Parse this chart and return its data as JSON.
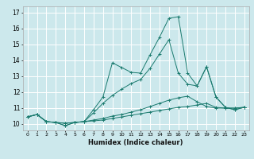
{
  "xlabel": "Humidex (Indice chaleur)",
  "bg_color": "#cce8ec",
  "grid_color": "#ffffff",
  "line_color": "#1a7a6e",
  "xlim": [
    -0.5,
    23.5
  ],
  "ylim": [
    9.6,
    17.4
  ],
  "yticks": [
    10,
    11,
    12,
    13,
    14,
    15,
    16,
    17
  ],
  "xticks": [
    0,
    1,
    2,
    3,
    4,
    5,
    6,
    7,
    8,
    9,
    10,
    11,
    12,
    13,
    14,
    15,
    16,
    17,
    18,
    19,
    20,
    21,
    22,
    23
  ],
  "series": [
    {
      "x": [
        0,
        1,
        2,
        3,
        4,
        5,
        6,
        7,
        8,
        9,
        10,
        11,
        12,
        13,
        14,
        15,
        16,
        17,
        18,
        19,
        20,
        21,
        22,
        23
      ],
      "y": [
        10.45,
        10.6,
        10.15,
        10.1,
        10.05,
        10.1,
        10.15,
        10.2,
        10.25,
        10.35,
        10.45,
        10.55,
        10.65,
        10.75,
        10.85,
        10.95,
        11.05,
        11.1,
        11.2,
        11.3,
        11.05,
        11.0,
        11.0,
        11.05
      ]
    },
    {
      "x": [
        0,
        1,
        2,
        3,
        4,
        5,
        6,
        7,
        8,
        9,
        10,
        11,
        12,
        13,
        14,
        15,
        16,
        17,
        18,
        19,
        20,
        21,
        22,
        23
      ],
      "y": [
        10.45,
        10.6,
        10.15,
        10.1,
        10.05,
        10.1,
        10.15,
        10.25,
        10.35,
        10.5,
        10.6,
        10.75,
        10.9,
        11.1,
        11.3,
        11.5,
        11.65,
        11.75,
        11.4,
        11.1,
        11.0,
        11.0,
        11.0,
        11.05
      ]
    },
    {
      "x": [
        0,
        1,
        2,
        3,
        4,
        5,
        6,
        7,
        8,
        9,
        10,
        11,
        12,
        13,
        14,
        15,
        16,
        17,
        18,
        19,
        20,
        21,
        22,
        23
      ],
      "y": [
        10.45,
        10.6,
        10.15,
        10.1,
        9.9,
        10.1,
        10.15,
        10.7,
        11.3,
        11.8,
        12.2,
        12.55,
        12.8,
        13.5,
        14.4,
        15.3,
        13.2,
        12.5,
        12.4,
        13.6,
        11.7,
        11.05,
        10.9,
        11.05
      ]
    },
    {
      "x": [
        0,
        1,
        2,
        3,
        4,
        5,
        6,
        7,
        8,
        9,
        10,
        11,
        12,
        13,
        14,
        15,
        16,
        17,
        18,
        19,
        20,
        21,
        22,
        23
      ],
      "y": [
        10.45,
        10.6,
        10.15,
        10.1,
        9.9,
        10.1,
        10.15,
        10.9,
        11.7,
        13.85,
        13.55,
        13.25,
        13.2,
        14.35,
        15.45,
        16.65,
        16.75,
        13.2,
        12.4,
        13.6,
        11.7,
        11.05,
        10.9,
        11.05
      ]
    }
  ]
}
